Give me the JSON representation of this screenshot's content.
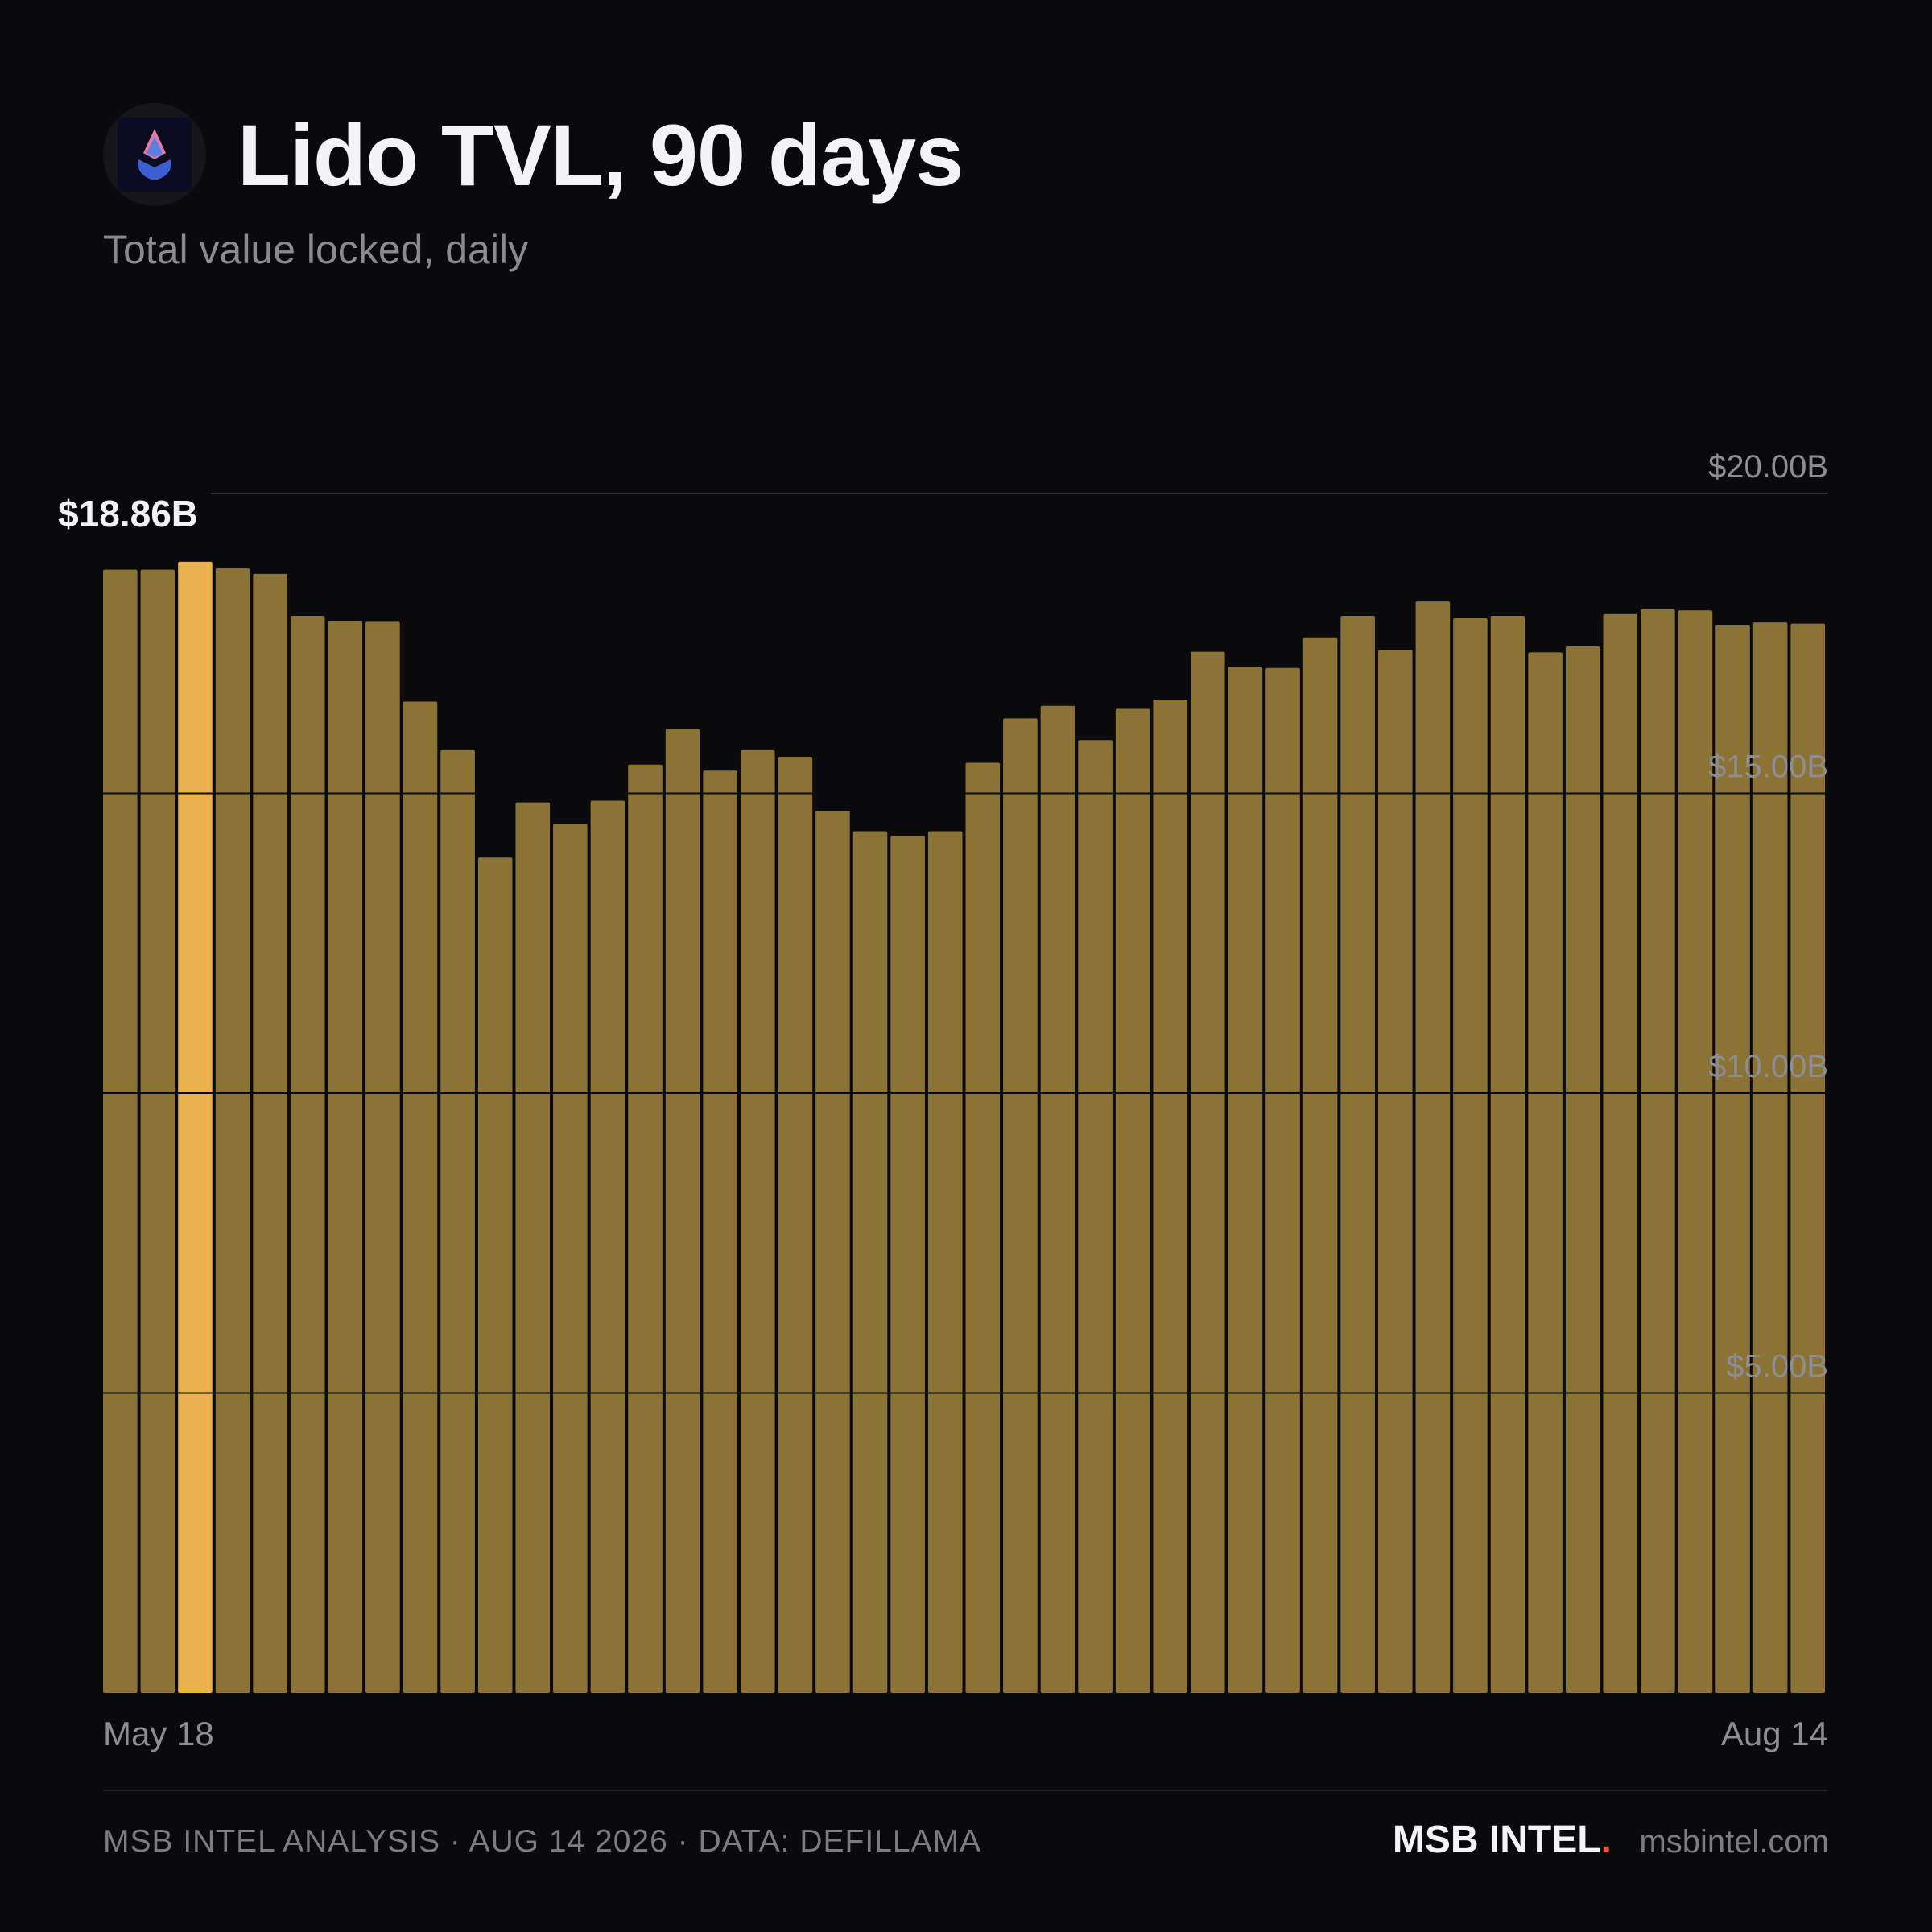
{
  "header": {
    "title": "Lido TVL, 90 days",
    "subtitle": "Total value locked, daily",
    "logo_icon": "lido-droplet-icon"
  },
  "chart_data": {
    "type": "bar",
    "title": "Lido TVL, 90 days",
    "subtitle": "Total value locked, daily",
    "xlabel": "",
    "ylabel": "",
    "ylim": [
      0,
      20
    ],
    "y_ticks": [
      5,
      10,
      15,
      20
    ],
    "y_tick_labels": [
      "$5.00B",
      "$10.00B",
      "$15.00B",
      "$20.00B"
    ],
    "x_tick_labels": [
      "May 18",
      "Aug 14"
    ],
    "grid": true,
    "legend": "none",
    "highlight_index": 2,
    "highlight_label": "$18.86B",
    "values": [
      18.73,
      18.73,
      18.86,
      18.75,
      18.66,
      17.96,
      17.88,
      17.86,
      16.53,
      15.72,
      13.93,
      14.85,
      14.49,
      14.88,
      15.48,
      16.07,
      15.38,
      15.72,
      15.61,
      14.71,
      14.37,
      14.29,
      14.37,
      15.51,
      16.25,
      16.46,
      15.89,
      16.41,
      16.56,
      17.36,
      17.11,
      17.09,
      17.6,
      17.96,
      17.39,
      18.2,
      17.92,
      17.96,
      17.35,
      17.45,
      17.99,
      18.07,
      18.05,
      17.8,
      17.85,
      17.83
    ],
    "colors": {
      "bar": "#8b7335",
      "highlight": "#e9b24f",
      "grid": "#2a2a2e",
      "tick_label": "#8d8d93"
    }
  },
  "footer": {
    "credit": "MSB INTEL ANALYSIS · AUG 14 2026 · DATA: DEFILLAMA",
    "brand": "MSB INTEL",
    "brand_dot": ".",
    "brand_dot_color": "#e0573f",
    "site": "msbintel.com"
  }
}
